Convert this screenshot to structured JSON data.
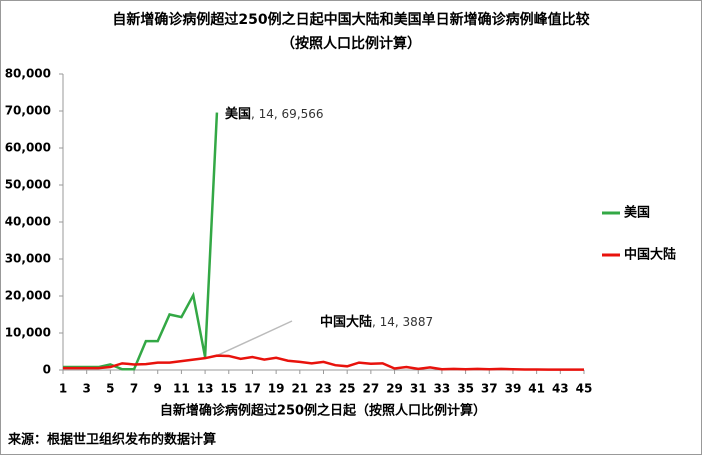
{
  "chart_data": {
    "type": "line",
    "title": "自新增确诊病例超过250例之日起中国大陆和美国单日新增确诊病例峰值比较",
    "subtitle": "（按照人口比例计算）",
    "x_label": "自新增确诊病例超过250例之日起（按照人口比例计算）",
    "source": "来源：根据世卫组织发布的数据计算",
    "x": [
      1,
      2,
      3,
      4,
      5,
      6,
      7,
      8,
      9,
      10,
      11,
      12,
      13,
      14,
      15,
      16,
      17,
      18,
      19,
      20,
      21,
      22,
      23,
      24,
      25,
      26,
      27,
      28,
      29,
      30,
      31,
      32,
      33,
      34,
      35,
      36,
      37,
      38,
      39,
      40,
      41,
      42,
      43,
      44,
      45
    ],
    "xlim": [
      1,
      45
    ],
    "xticks": [
      1,
      3,
      5,
      7,
      9,
      11,
      13,
      15,
      17,
      19,
      21,
      23,
      25,
      27,
      29,
      31,
      33,
      35,
      37,
      39,
      41,
      43,
      45
    ],
    "ylim": [
      0,
      80000
    ],
    "yticks": [
      0,
      {
        "value": 10000,
        "label": "10,000"
      },
      {
        "value": 20000,
        "label": "20,000"
      },
      {
        "value": 30000,
        "label": "30,000"
      },
      {
        "value": 40000,
        "label": "40,000"
      },
      {
        "value": 50000,
        "label": "50,000"
      },
      {
        "value": 60000,
        "label": "60,000"
      },
      {
        "value": 70000,
        "label": "70,000"
      },
      {
        "value": 80000,
        "label": "80,000"
      }
    ],
    "grid": false,
    "legend": "right",
    "series": [
      {
        "name": "美国",
        "color": "#33a845",
        "values": [
          800,
          800,
          800,
          800,
          1500,
          200,
          200,
          7800,
          7800,
          15000,
          14300,
          20200,
          3500,
          69566,
          null,
          null,
          null,
          null,
          null,
          null,
          null,
          null,
          null,
          null,
          null,
          null,
          null,
          null,
          null,
          null,
          null,
          null,
          null,
          null,
          null,
          null,
          null,
          null,
          null,
          null,
          null,
          null,
          null,
          null,
          null
        ]
      },
      {
        "name": "中国大陆",
        "color": "#e8120c",
        "values": [
          500,
          500,
          500,
          500,
          800,
          1800,
          1500,
          1600,
          2000,
          2000,
          2400,
          2800,
          3200,
          3887,
          3800,
          3000,
          3500,
          2800,
          3300,
          2500,
          2200,
          1800,
          2200,
          1300,
          1000,
          2000,
          1700,
          1800,
          400,
          800,
          300,
          700,
          200,
          300,
          200,
          300,
          200,
          300,
          200,
          150,
          150,
          100,
          100,
          100,
          100
        ]
      }
    ],
    "annotations": [
      {
        "label": "美国",
        "text": ", 14, 69,566"
      },
      {
        "label": "中国大陆",
        "text": ", 14, 3887"
      }
    ]
  }
}
